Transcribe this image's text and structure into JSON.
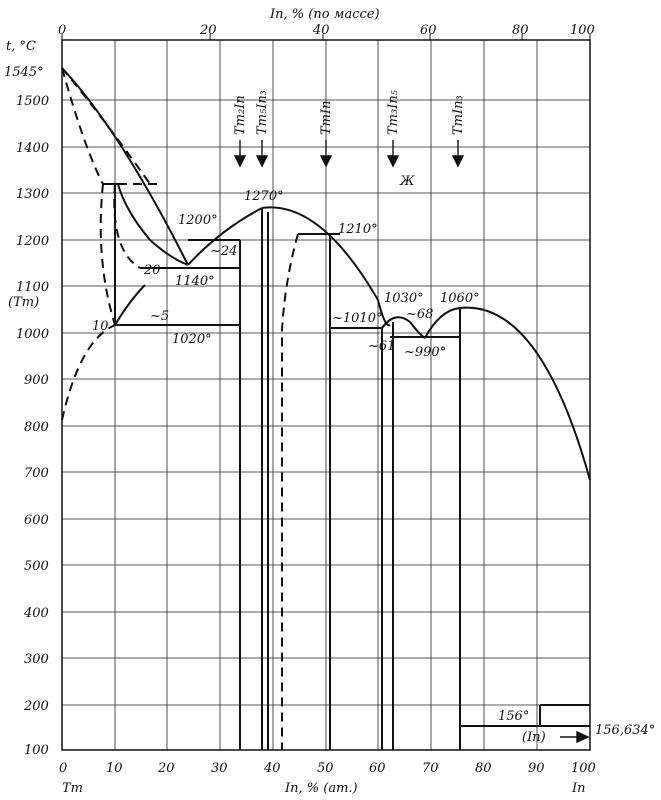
{
  "top_axis": {
    "title": "In, % (по массе)",
    "ticks": [
      "0",
      "20",
      "40",
      "60",
      "80",
      "100"
    ]
  },
  "left_axis": {
    "title": "t, °C",
    "ticks": [
      "1500",
      "1400",
      "1300",
      "1200",
      "1100",
      "1000",
      "900",
      "800",
      "700",
      "600",
      "500",
      "400",
      "300",
      "200",
      "100"
    ]
  },
  "bottom_axis": {
    "title": "In, % (ат.)",
    "ticks": [
      "0",
      "10",
      "20",
      "30",
      "40",
      "50",
      "60",
      "70",
      "80",
      "90",
      "100"
    ],
    "left_end": "Tm",
    "right_end": "In"
  },
  "labels": {
    "tm_melt": "1545°",
    "tm_phase": "(Tm)",
    "p10": "10",
    "p20": "20",
    "p5": "~5",
    "p24": "~24",
    "t1140": "1140°",
    "t1020": "1020°",
    "t1200": "1200°",
    "t1270": "1270°",
    "t1210": "1210°",
    "t1030": "1030°",
    "t1010": "~1010°",
    "t1060": "1060°",
    "p68": "~68",
    "p61": "~61",
    "t990": "~990°",
    "liquid": "Ж",
    "t156": "156°",
    "t156634": "156,634°",
    "in_phase": "(In)"
  },
  "compounds": [
    "Tm₂In",
    "Tm₅In₃",
    "TmIn",
    "Tm₃In₅",
    "TmIn₃"
  ]
}
